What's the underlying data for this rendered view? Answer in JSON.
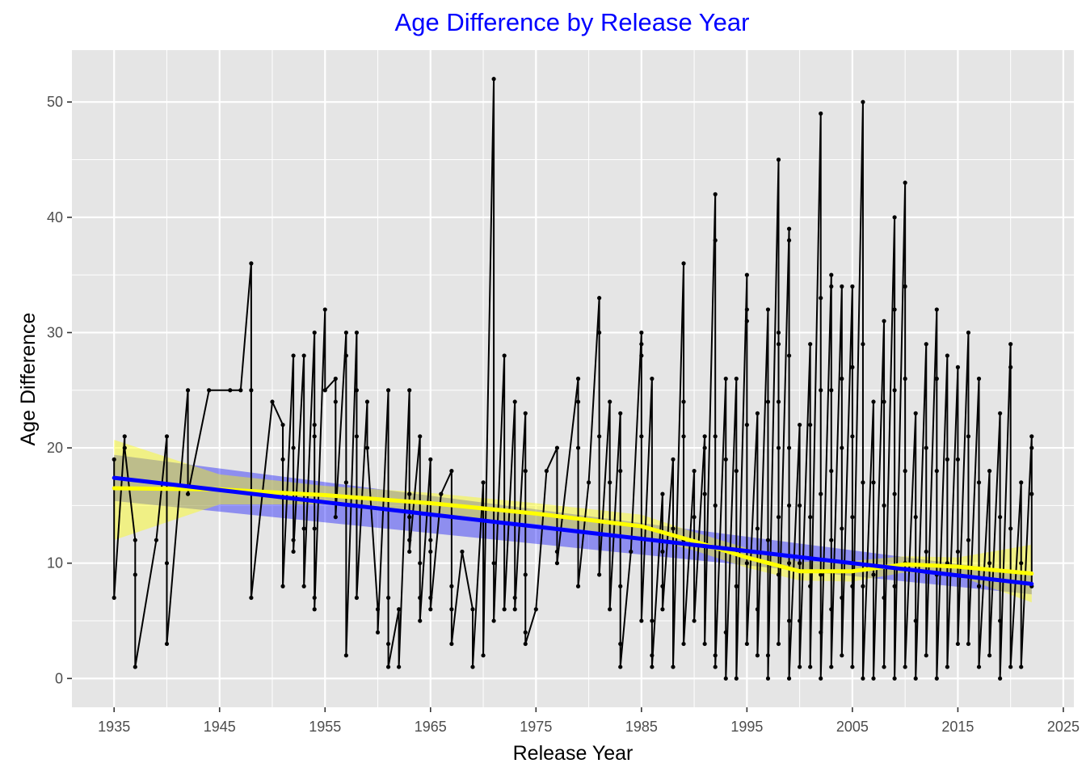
{
  "chart_data": {
    "type": "line",
    "title": "Age Difference by Release Year",
    "xlabel": "Release Year",
    "ylabel": "Age Difference",
    "xlim": [
      1931,
      2026
    ],
    "ylim": [
      -2.5,
      54.5
    ],
    "xticks": [
      1935,
      1945,
      1955,
      1965,
      1975,
      1985,
      1995,
      2005,
      2015,
      2025
    ],
    "yticks": [
      0,
      10,
      20,
      30,
      40,
      50
    ],
    "xtick_labels": [
      "1935",
      "1945",
      "1955",
      "1965",
      "1975",
      "1985",
      "1995",
      "2005",
      "2015",
      "2025"
    ],
    "ytick_labels": [
      "0",
      "10",
      "20",
      "30",
      "40",
      "50"
    ],
    "grid": true,
    "colors": {
      "title": "#0000ff",
      "panel": "#e5e5e5",
      "grid": "#ffffff",
      "data": "#000000",
      "linear_fit": "#0000ff",
      "linear_band": "#0000ff",
      "loess_fit": "#ffff00",
      "loess_band": "#ffff00"
    },
    "series": [
      {
        "type": "line+points",
        "points": [
          [
            1935,
            19
          ],
          [
            1935,
            7
          ],
          [
            1936,
            21
          ],
          [
            1936,
            20
          ],
          [
            1937,
            12
          ],
          [
            1937,
            9
          ],
          [
            1937,
            1
          ],
          [
            1939,
            12
          ],
          [
            1940,
            21
          ],
          [
            1940,
            10
          ],
          [
            1940,
            3
          ],
          [
            1942,
            25
          ],
          [
            1942,
            16
          ],
          [
            1944,
            25
          ],
          [
            1946,
            25
          ],
          [
            1947,
            25
          ],
          [
            1948,
            36
          ],
          [
            1948,
            25
          ],
          [
            1948,
            7
          ],
          [
            1950,
            24
          ],
          [
            1951,
            22
          ],
          [
            1951,
            19
          ],
          [
            1951,
            8
          ],
          [
            1952,
            28
          ],
          [
            1952,
            20
          ],
          [
            1952,
            12
          ],
          [
            1952,
            11
          ],
          [
            1953,
            28
          ],
          [
            1953,
            13
          ],
          [
            1953,
            8
          ],
          [
            1954,
            30
          ],
          [
            1954,
            22
          ],
          [
            1954,
            21
          ],
          [
            1954,
            13
          ],
          [
            1954,
            7
          ],
          [
            1954,
            6
          ],
          [
            1955,
            32
          ],
          [
            1955,
            25
          ],
          [
            1956,
            26
          ],
          [
            1956,
            24
          ],
          [
            1956,
            14
          ],
          [
            1957,
            30
          ],
          [
            1957,
            28
          ],
          [
            1957,
            17
          ],
          [
            1957,
            2
          ],
          [
            1958,
            30
          ],
          [
            1958,
            25
          ],
          [
            1958,
            21
          ],
          [
            1958,
            7
          ],
          [
            1959,
            24
          ],
          [
            1959,
            20
          ],
          [
            1960,
            6
          ],
          [
            1960,
            4
          ],
          [
            1961,
            25
          ],
          [
            1961,
            7
          ],
          [
            1961,
            3
          ],
          [
            1961,
            1
          ],
          [
            1962,
            6
          ],
          [
            1962,
            1
          ],
          [
            1963,
            25
          ],
          [
            1963,
            16
          ],
          [
            1963,
            14
          ],
          [
            1963,
            12
          ],
          [
            1963,
            11
          ],
          [
            1964,
            21
          ],
          [
            1964,
            10
          ],
          [
            1964,
            7
          ],
          [
            1964,
            5
          ],
          [
            1965,
            19
          ],
          [
            1965,
            12
          ],
          [
            1965,
            11
          ],
          [
            1965,
            7
          ],
          [
            1965,
            6
          ],
          [
            1966,
            16
          ],
          [
            1967,
            18
          ],
          [
            1967,
            8
          ],
          [
            1967,
            6
          ],
          [
            1967,
            3
          ],
          [
            1968,
            11
          ],
          [
            1969,
            6
          ],
          [
            1969,
            1
          ],
          [
            1970,
            17
          ],
          [
            1970,
            2
          ],
          [
            1971,
            52
          ],
          [
            1971,
            10
          ],
          [
            1971,
            5
          ],
          [
            1972,
            28
          ],
          [
            1972,
            6
          ],
          [
            1973,
            24
          ],
          [
            1973,
            7
          ],
          [
            1973,
            6
          ],
          [
            1974,
            23
          ],
          [
            1974,
            18
          ],
          [
            1974,
            9
          ],
          [
            1974,
            4
          ],
          [
            1974,
            3
          ],
          [
            1975,
            6
          ],
          [
            1976,
            18
          ],
          [
            1977,
            20
          ],
          [
            1977,
            11
          ],
          [
            1977,
            10
          ],
          [
            1979,
            26
          ],
          [
            1979,
            24
          ],
          [
            1979,
            20
          ],
          [
            1979,
            8
          ],
          [
            1980,
            17
          ],
          [
            1981,
            33
          ],
          [
            1981,
            30
          ],
          [
            1981,
            21
          ],
          [
            1981,
            9
          ],
          [
            1982,
            24
          ],
          [
            1982,
            17
          ],
          [
            1982,
            6
          ],
          [
            1983,
            23
          ],
          [
            1983,
            18
          ],
          [
            1983,
            8
          ],
          [
            1983,
            3
          ],
          [
            1983,
            1
          ],
          [
            1984,
            11
          ],
          [
            1985,
            30
          ],
          [
            1985,
            29
          ],
          [
            1985,
            28
          ],
          [
            1985,
            21
          ],
          [
            1985,
            5
          ],
          [
            1986,
            26
          ],
          [
            1986,
            5
          ],
          [
            1986,
            2
          ],
          [
            1986,
            1
          ],
          [
            1987,
            16
          ],
          [
            1987,
            11
          ],
          [
            1987,
            8
          ],
          [
            1987,
            6
          ],
          [
            1988,
            19
          ],
          [
            1988,
            13
          ],
          [
            1988,
            1
          ],
          [
            1989,
            36
          ],
          [
            1989,
            24
          ],
          [
            1989,
            21
          ],
          [
            1989,
            12
          ],
          [
            1989,
            3
          ],
          [
            1990,
            18
          ],
          [
            1990,
            14
          ],
          [
            1990,
            5
          ],
          [
            1991,
            21
          ],
          [
            1991,
            20
          ],
          [
            1991,
            16
          ],
          [
            1991,
            3
          ],
          [
            1992,
            42
          ],
          [
            1992,
            38
          ],
          [
            1992,
            21
          ],
          [
            1992,
            15
          ],
          [
            1992,
            2
          ],
          [
            1992,
            1
          ],
          [
            1993,
            26
          ],
          [
            1993,
            19
          ],
          [
            1993,
            4
          ],
          [
            1993,
            0
          ],
          [
            1994,
            26
          ],
          [
            1994,
            18
          ],
          [
            1994,
            8
          ],
          [
            1994,
            0
          ],
          [
            1995,
            35
          ],
          [
            1995,
            32
          ],
          [
            1995,
            31
          ],
          [
            1995,
            22
          ],
          [
            1995,
            10
          ],
          [
            1995,
            3
          ],
          [
            1996,
            23
          ],
          [
            1996,
            13
          ],
          [
            1996,
            6
          ],
          [
            1996,
            2
          ],
          [
            1997,
            32
          ],
          [
            1997,
            24
          ],
          [
            1997,
            12
          ],
          [
            1997,
            2
          ],
          [
            1997,
            0
          ],
          [
            1998,
            45
          ],
          [
            1998,
            30
          ],
          [
            1998,
            29
          ],
          [
            1998,
            24
          ],
          [
            1998,
            20
          ],
          [
            1998,
            14
          ],
          [
            1998,
            9
          ],
          [
            1998,
            3
          ],
          [
            1999,
            39
          ],
          [
            1999,
            38
          ],
          [
            1999,
            28
          ],
          [
            1999,
            20
          ],
          [
            1999,
            15
          ],
          [
            1999,
            10
          ],
          [
            1999,
            5
          ],
          [
            1999,
            0
          ],
          [
            2000,
            22
          ],
          [
            2000,
            15
          ],
          [
            2000,
            10
          ],
          [
            2000,
            5
          ],
          [
            2000,
            1
          ],
          [
            2001,
            29
          ],
          [
            2001,
            22
          ],
          [
            2001,
            14
          ],
          [
            2001,
            8
          ],
          [
            2001,
            1
          ],
          [
            2002,
            49
          ],
          [
            2002,
            33
          ],
          [
            2002,
            25
          ],
          [
            2002,
            16
          ],
          [
            2002,
            9
          ],
          [
            2002,
            4
          ],
          [
            2002,
            0
          ],
          [
            2003,
            35
          ],
          [
            2003,
            34
          ],
          [
            2003,
            25
          ],
          [
            2003,
            18
          ],
          [
            2003,
            12
          ],
          [
            2003,
            6
          ],
          [
            2003,
            1
          ],
          [
            2004,
            34
          ],
          [
            2004,
            26
          ],
          [
            2004,
            20
          ],
          [
            2004,
            13
          ],
          [
            2004,
            7
          ],
          [
            2004,
            2
          ],
          [
            2005,
            34
          ],
          [
            2005,
            27
          ],
          [
            2005,
            21
          ],
          [
            2005,
            14
          ],
          [
            2005,
            8
          ],
          [
            2005,
            1
          ],
          [
            2006,
            50
          ],
          [
            2006,
            29
          ],
          [
            2006,
            17
          ],
          [
            2006,
            8
          ],
          [
            2006,
            0
          ],
          [
            2007,
            24
          ],
          [
            2007,
            17
          ],
          [
            2007,
            9
          ],
          [
            2007,
            0
          ],
          [
            2008,
            31
          ],
          [
            2008,
            24
          ],
          [
            2008,
            15
          ],
          [
            2008,
            7
          ],
          [
            2008,
            1
          ],
          [
            2009,
            40
          ],
          [
            2009,
            32
          ],
          [
            2009,
            25
          ],
          [
            2009,
            16
          ],
          [
            2009,
            8
          ],
          [
            2009,
            0
          ],
          [
            2010,
            43
          ],
          [
            2010,
            34
          ],
          [
            2010,
            26
          ],
          [
            2010,
            18
          ],
          [
            2010,
            10
          ],
          [
            2010,
            1
          ],
          [
            2011,
            23
          ],
          [
            2011,
            14
          ],
          [
            2011,
            5
          ],
          [
            2011,
            0
          ],
          [
            2012,
            29
          ],
          [
            2012,
            20
          ],
          [
            2012,
            11
          ],
          [
            2012,
            2
          ],
          [
            2013,
            32
          ],
          [
            2013,
            26
          ],
          [
            2013,
            18
          ],
          [
            2013,
            9
          ],
          [
            2013,
            0
          ],
          [
            2014,
            28
          ],
          [
            2014,
            19
          ],
          [
            2014,
            10
          ],
          [
            2014,
            1
          ],
          [
            2015,
            27
          ],
          [
            2015,
            19
          ],
          [
            2015,
            11
          ],
          [
            2015,
            3
          ],
          [
            2016,
            30
          ],
          [
            2016,
            21
          ],
          [
            2016,
            12
          ],
          [
            2016,
            3
          ],
          [
            2017,
            26
          ],
          [
            2017,
            17
          ],
          [
            2017,
            8
          ],
          [
            2017,
            1
          ],
          [
            2018,
            18
          ],
          [
            2018,
            10
          ],
          [
            2018,
            2
          ],
          [
            2019,
            23
          ],
          [
            2019,
            14
          ],
          [
            2019,
            5
          ],
          [
            2019,
            0
          ],
          [
            2020,
            29
          ],
          [
            2020,
            27
          ],
          [
            2020,
            13
          ],
          [
            2020,
            1
          ],
          [
            2021,
            17
          ],
          [
            2021,
            10
          ],
          [
            2021,
            1
          ],
          [
            2022,
            21
          ],
          [
            2022,
            20
          ],
          [
            2022,
            16
          ],
          [
            2022,
            8
          ]
        ]
      },
      {
        "type": "linear_fit",
        "x": [
          1935,
          2022
        ],
        "y": [
          17.4,
          8.2
        ],
        "band_lower": [
          15.4,
          7.3
        ],
        "band_upper": [
          19.4,
          9.1
        ]
      },
      {
        "type": "loess_fit",
        "x": [
          1935,
          1945,
          1955,
          1965,
          1975,
          1985,
          1990,
          1995,
          2000,
          2005,
          2010,
          2015,
          2022
        ],
        "y": [
          16.5,
          16.4,
          15.9,
          15.2,
          14.3,
          13.2,
          11.9,
          10.5,
          9.3,
          9.3,
          9.9,
          9.7,
          9.1
        ],
        "band_lower": [
          12.0,
          15.1,
          15.1,
          14.3,
          13.4,
          12.3,
          11.1,
          9.6,
          8.5,
          8.4,
          9.2,
          8.9,
          6.6
        ],
        "band_upper": [
          20.7,
          17.7,
          16.7,
          16.1,
          15.2,
          14.2,
          12.7,
          11.3,
          10.1,
          10.2,
          10.6,
          10.5,
          11.6
        ]
      }
    ]
  }
}
